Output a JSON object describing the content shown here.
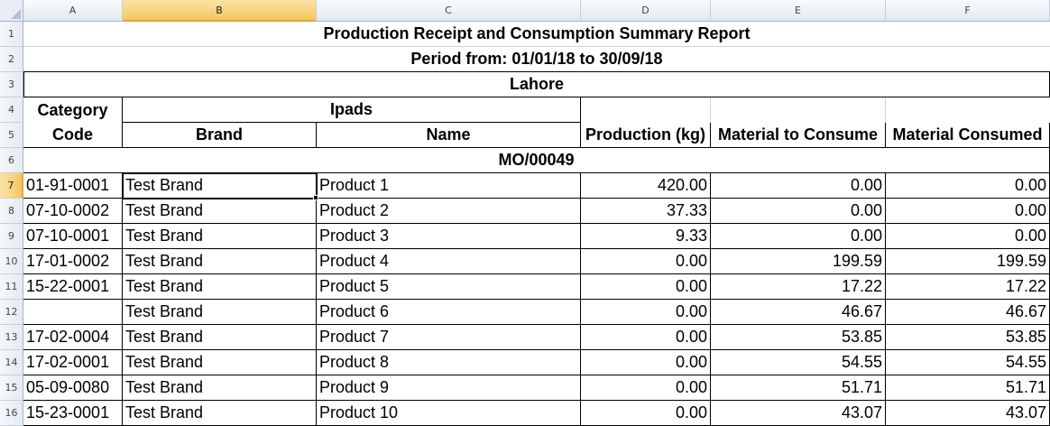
{
  "columns": [
    "A",
    "B",
    "C",
    "D",
    "E",
    "F"
  ],
  "selected_column": "B",
  "row_numbers": [
    "1",
    "2",
    "3",
    "4",
    "5",
    "6",
    "7",
    "8",
    "9",
    "10",
    "11",
    "12",
    "13",
    "14",
    "15",
    "16"
  ],
  "selected_row": "7",
  "report": {
    "title": "Production Receipt and Consumption Summary Report",
    "period": "Period from: 01/01/18 to 30/09/18",
    "location": "Lahore",
    "header_row4": {
      "category": "Category",
      "group": "Ipads"
    },
    "header_row5": {
      "code": "Code",
      "brand": "Brand",
      "name": "Name",
      "production": "Production (kg)",
      "material_to_consume": "Material to Consume",
      "material_consumed": "Material Consumed"
    },
    "order_label": "MO/00049"
  },
  "rows": [
    {
      "code": "01-91-0001",
      "brand": "Test Brand",
      "name": "Product 1",
      "production": "420.00",
      "to_consume": "0.00",
      "consumed": "0.00"
    },
    {
      "code": "07-10-0002",
      "brand": "Test Brand",
      "name": "Product 2",
      "production": "37.33",
      "to_consume": "0.00",
      "consumed": "0.00"
    },
    {
      "code": "07-10-0001",
      "brand": "Test Brand",
      "name": "Product 3",
      "production": "9.33",
      "to_consume": "0.00",
      "consumed": "0.00"
    },
    {
      "code": "17-01-0002",
      "brand": "Test Brand",
      "name": "Product 4",
      "production": "0.00",
      "to_consume": "199.59",
      "consumed": "199.59"
    },
    {
      "code": "15-22-0001",
      "brand": "Test Brand",
      "name": "Product 5",
      "production": "0.00",
      "to_consume": "17.22",
      "consumed": "17.22"
    },
    {
      "code": "",
      "brand": "Test Brand",
      "name": "Product 6",
      "production": "0.00",
      "to_consume": "46.67",
      "consumed": "46.67"
    },
    {
      "code": "17-02-0004",
      "brand": "Test Brand",
      "name": "Product 7",
      "production": "0.00",
      "to_consume": "53.85",
      "consumed": "53.85"
    },
    {
      "code": "17-02-0001",
      "brand": "Test Brand",
      "name": "Product 8",
      "production": "0.00",
      "to_consume": "54.55",
      "consumed": "54.55"
    },
    {
      "code": "05-09-0080",
      "brand": "Test Brand",
      "name": "Product 9",
      "production": "0.00",
      "to_consume": "51.71",
      "consumed": "51.71"
    },
    {
      "code": "15-23-0001",
      "brand": "Test Brand",
      "name": "Product 10",
      "production": "0.00",
      "to_consume": "43.07",
      "consumed": "43.07"
    }
  ]
}
